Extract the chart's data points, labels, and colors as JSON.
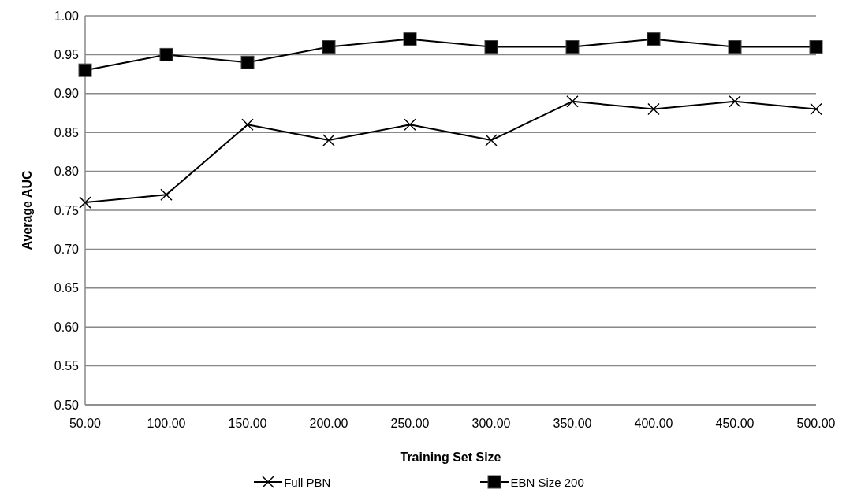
{
  "chart_data": {
    "type": "line",
    "xlabel": "Training Set Size",
    "ylabel": "Average AUC",
    "categories": [
      "50.00",
      "100.00",
      "150.00",
      "200.00",
      "250.00",
      "300.00",
      "350.00",
      "400.00",
      "450.00",
      "500.00"
    ],
    "series": [
      {
        "name": "Full PBN",
        "color": "#000000",
        "marker": "cross",
        "values": [
          0.76,
          0.77,
          0.86,
          0.84,
          0.86,
          0.84,
          0.89,
          0.88,
          0.89,
          0.88
        ]
      },
      {
        "name": "EBN Size 200",
        "color": "#000000",
        "marker": "square",
        "values": [
          0.93,
          0.95,
          0.94,
          0.96,
          0.97,
          0.96,
          0.96,
          0.97,
          0.96,
          0.96
        ]
      }
    ],
    "ylim": [
      0.5,
      1.0
    ],
    "yticks": [
      {
        "value": 0.5,
        "label": "0.50"
      },
      {
        "value": 0.55,
        "label": "0.55"
      },
      {
        "value": 0.6,
        "label": "0.60"
      },
      {
        "value": 0.65,
        "label": "0.65"
      },
      {
        "value": 0.7,
        "label": "0.70"
      },
      {
        "value": 0.75,
        "label": "0.75"
      },
      {
        "value": 0.8,
        "label": "0.80"
      },
      {
        "value": 0.85,
        "label": "0.85"
      },
      {
        "value": 0.9,
        "label": "0.90"
      },
      {
        "value": 0.95,
        "label": "0.95"
      },
      {
        "value": 1.0,
        "label": "1.00"
      }
    ],
    "grid": "y",
    "legend": "bottom",
    "line_style": "solid"
  }
}
